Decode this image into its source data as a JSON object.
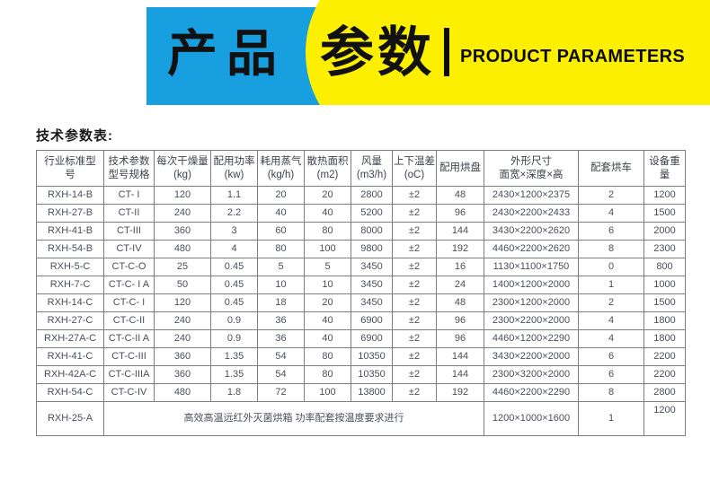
{
  "banner": {
    "title_cn_left": "产品",
    "title_cn_right": "参数",
    "title_en": "PRODUCT PARAMETERS",
    "colors": {
      "blue": "#189fe0",
      "yellow": "#fcf000",
      "text": "#0d0d0d"
    }
  },
  "section": {
    "title": "技术参数表:"
  },
  "table": {
    "headers": [
      "行业标准型\n号",
      "技术参数\n型号规格",
      "每次干燥量\n(kg)",
      "配用功率\n(kw)",
      "耗用蒸气\n(kg/h)",
      "散热面积\n(m2)",
      "风量\n(m3/h)",
      "上下温差\n(oC)",
      "配用烘盘",
      "外形尺寸\n面宽×深度×高",
      "配套烘车",
      "设备重\n量"
    ],
    "rows": [
      [
        "RXH-14-B",
        "CT- I",
        "120",
        "1.1",
        "20",
        "20",
        "2800",
        "±2",
        "48",
        "2430×1200×2375",
        "2",
        "1200"
      ],
      [
        "RXH-27-B",
        "CT-II",
        "240",
        "2.2",
        "40",
        "40",
        "5200",
        "±2",
        "96",
        "2430×2200×2433",
        "4",
        "1500"
      ],
      [
        "RXH-41-B",
        "CT-III",
        "360",
        "3",
        "60",
        "80",
        "8000",
        "±2",
        "144",
        "3430×2200×2620",
        "6",
        "2000"
      ],
      [
        "RXH-54-B",
        "CT-IV",
        "480",
        "4",
        "80",
        "100",
        "9800",
        "±2",
        "192",
        "4460×2200×2620",
        "8",
        "2300"
      ],
      [
        "RXH-5-C",
        "CT-C-O",
        "25",
        "0.45",
        "5",
        "5",
        "3450",
        "±2",
        "16",
        "1130×1100×1750",
        "0",
        "800"
      ],
      [
        "RXH-7-C",
        "CT-C- I A",
        "50",
        "0.45",
        "10",
        "10",
        "3450",
        "±2",
        "24",
        "1400×1200×2000",
        "1",
        "1000"
      ],
      [
        "RXH-14-C",
        "CT-C- I",
        "120",
        "0.45",
        "18",
        "20",
        "3450",
        "±2",
        "48",
        "2300×1200×2000",
        "2",
        "1500"
      ],
      [
        "RXH-27-C",
        "CT-C-II",
        "240",
        "0.9",
        "36",
        "40",
        "6900",
        "±2",
        "96",
        "2300×2200×2000",
        "4",
        "1800"
      ],
      [
        "RXH-27A-C",
        "CT-C-II A",
        "240",
        "0.9",
        "36",
        "40",
        "6900",
        "±2",
        "96",
        "4460×1200×2290",
        "4",
        "1800"
      ],
      [
        "RXH-41-C",
        "CT-C-III",
        "360",
        "1.35",
        "54",
        "80",
        "10350",
        "±2",
        "144",
        "3430×2200×2000",
        "6",
        "2200"
      ],
      [
        "RXH-42A-C",
        "CT-C-IIIA",
        "360",
        "1.35",
        "54",
        "80",
        "10350",
        "±2",
        "144",
        "2300×3200×2000",
        "6",
        "2200"
      ],
      [
        "RXH-54-C",
        "CT-C-IV",
        "480",
        "1.8",
        "72",
        "100",
        "13800",
        "±2",
        "192",
        "4460×2200×2290",
        "8",
        "2800"
      ]
    ],
    "footer": {
      "model": "RXH-25-A",
      "note": "高效高温远红外灭菌烘箱 功率配套按温度要求进行",
      "note_colspan": 8,
      "dimensions": "1200×1000×1600",
      "carts": "1",
      "weight": "1200"
    }
  }
}
